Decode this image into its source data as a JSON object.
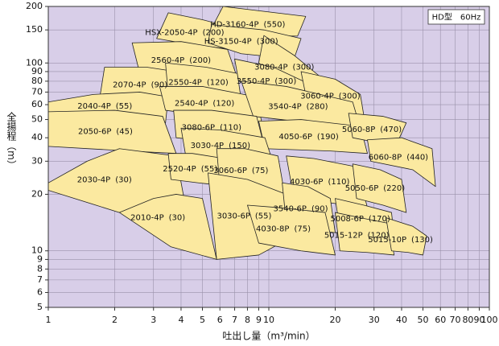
{
  "chart_data": {
    "type": "region",
    "badge": "HD型　60Hz",
    "x_label": "吐出し量（m³/min）",
    "y_label": "全揚程（m）",
    "xscale": "log",
    "yscale": "log",
    "grid": true,
    "background": "#d8cee8",
    "color": "#fbe9a0",
    "xlim": [
      1,
      100
    ],
    "ylim": [
      5,
      200
    ],
    "xticks": [
      1,
      2,
      3,
      4,
      5,
      6,
      7,
      8,
      9,
      10,
      20,
      30,
      40,
      50,
      60,
      70,
      80,
      90,
      100
    ],
    "yticks": [
      5,
      6,
      7,
      8,
      9,
      10,
      20,
      30,
      40,
      50,
      60,
      70,
      80,
      90,
      100,
      150,
      200
    ],
    "regions": [
      {
        "name": "HSX-2050-4P",
        "kw": "(200)",
        "x": [
          3.5,
          5.0,
          7.5,
          7.0,
          4.5,
          3.1
        ],
        "y": [
          185,
          170,
          150,
          118,
          125,
          135
        ]
      },
      {
        "name": "HD-3160-4P",
        "kw": "(550)",
        "x": [
          6.2,
          14.7,
          13.5,
          9.5,
          5.5
        ],
        "y": [
          200,
          177,
          139,
          140,
          153
        ]
      },
      {
        "name": "HS-3150-4P",
        "kw": "(300)",
        "x": [
          5.5,
          9.5,
          14.0,
          13.0,
          7.5,
          5.3
        ],
        "y": [
          160,
          150,
          135,
          105,
          112,
          128
        ]
      },
      {
        "name": "2560-4P",
        "kw": "(200)",
        "x": [
          2.4,
          4.0,
          6.5,
          7.2,
          4.8,
          2.6
        ],
        "y": [
          128,
          130,
          118,
          83,
          85,
          88
        ]
      },
      {
        "name": "3080-4P",
        "kw": "(300)",
        "x": [
          9.5,
          13,
          17,
          16,
          12,
          9
        ],
        "y": [
          140,
          110,
          85,
          70,
          80,
          100
        ]
      },
      {
        "name": "2070-4P",
        "kw": "(90)",
        "x": [
          1.8,
          2.8,
          4.3,
          4.6,
          3.0,
          1.7
        ],
        "y": [
          95,
          95,
          88,
          65,
          62,
          62
        ]
      },
      {
        "name": "2550-4P",
        "kw": "(120)",
        "x": [
          3.4,
          5.2,
          7.2,
          7.5,
          5.0,
          3.5
        ],
        "y": [
          100,
          95,
          88,
          63,
          66,
          68
        ]
      },
      {
        "name": "3550-4P",
        "kw": "(300)",
        "x": [
          7,
          10.5,
          15,
          14,
          10.5,
          7.3
        ],
        "y": [
          105,
          95,
          78,
          60,
          70,
          80
        ]
      },
      {
        "name": "3060-4P",
        "kw": "(300)",
        "x": [
          14,
          20,
          26,
          27,
          22,
          15
        ],
        "y": [
          90,
          82,
          68,
          52,
          55,
          60
        ]
      },
      {
        "name": "2040-4P",
        "kw": "(55)",
        "x": [
          1,
          1.6,
          2.6,
          3.5,
          3.4,
          2.2,
          1
        ],
        "y": [
          62,
          68,
          70,
          66,
          48,
          50,
          53
        ]
      },
      {
        "name": "2540-4P",
        "kw": "(120)",
        "x": [
          3.2,
          5.0,
          8.8,
          9.3,
          5.5,
          3.4
        ],
        "y": [
          75,
          75,
          66,
          48,
          52,
          56
        ]
      },
      {
        "name": "3540-4P",
        "kw": "(280)",
        "x": [
          7.5,
          12,
          24,
          26,
          18,
          8.5
        ],
        "y": [
          80,
          75,
          62,
          45,
          47,
          52
        ]
      },
      {
        "name": "3080-6P",
        "kw": "(110)",
        "x": [
          3.7,
          5.5,
          8.8,
          9.6,
          5.8,
          3.8
        ],
        "y": [
          56,
          56,
          52,
          35,
          38,
          40
        ]
      },
      {
        "name": "2050-6P",
        "kw": "(45)",
        "x": [
          1,
          2.0,
          3.3,
          3.8,
          2.3,
          1
        ],
        "y": [
          55,
          56,
          52,
          33,
          34,
          36
        ]
      },
      {
        "name": "4050-6P",
        "kw": "(190)",
        "x": [
          9,
          14,
          26,
          28,
          19,
          9.6
        ],
        "y": [
          49,
          50,
          46,
          33,
          34,
          35
        ]
      },
      {
        "name": "5060-8P",
        "kw": "(470)",
        "x": [
          23,
          33,
          42,
          38,
          30,
          24
        ],
        "y": [
          54,
          52,
          48,
          37,
          38,
          40
        ]
      },
      {
        "name": "3030-4P",
        "kw": "(150)",
        "x": [
          4.0,
          6.0,
          9.6,
          10.5,
          6.5,
          4.2
        ],
        "y": [
          45,
          44,
          40,
          29,
          31,
          32
        ]
      },
      {
        "name": "6060-8P",
        "kw": "(440)",
        "x": [
          28,
          40,
          55,
          57,
          45,
          29
        ],
        "y": [
          39,
          40,
          35,
          22,
          27,
          30
        ]
      },
      {
        "name": "2030-4P",
        "kw": "(30)",
        "x": [
          1,
          1.5,
          2.1,
          3.8,
          4.2,
          2.1,
          1
        ],
        "y": [
          23,
          30,
          35,
          32,
          17,
          16,
          21
        ]
      },
      {
        "name": "2520-4P",
        "kw": "(55)",
        "x": [
          3.5,
          4.5,
          6.3,
          6.8,
          4.8,
          3.6
        ],
        "y": [
          33,
          33,
          31,
          22,
          23,
          24
        ]
      },
      {
        "name": "3060-6P",
        "kw": "(75)",
        "x": [
          5.8,
          7.8,
          11,
          11.8,
          8.0,
          6.0
        ],
        "y": [
          35,
          35,
          32,
          20,
          21,
          22
        ]
      },
      {
        "name": "4030-6P",
        "kw": "(110)",
        "x": [
          12,
          16,
          25,
          28,
          19,
          13
        ],
        "y": [
          32,
          31,
          28,
          17,
          18,
          19
        ]
      },
      {
        "name": "5050-6P",
        "kw": "(220)",
        "x": [
          24,
          32,
          40,
          42,
          33,
          25
        ],
        "y": [
          29,
          27,
          24,
          16,
          17.5,
          19
        ]
      },
      {
        "name": "2010-4P",
        "kw": "(30)",
        "x": [
          2.1,
          3.0,
          3.8,
          5.0,
          5.8,
          3.6,
          2.1
        ],
        "y": [
          16,
          19,
          20,
          19,
          9,
          10.5,
          16
        ]
      },
      {
        "name": "3030-6P",
        "kw": "(55)",
        "x": [
          5.3,
          8,
          12,
          13,
          9,
          5.8
        ],
        "y": [
          26,
          24,
          20,
          12,
          9.5,
          9
        ]
      },
      {
        "name": "3540-6P",
        "kw": "(90)",
        "x": [
          11.5,
          15,
          19,
          20,
          15,
          12
        ],
        "y": [
          23,
          22,
          19,
          12.5,
          13,
          14
        ]
      },
      {
        "name": "5008-6P",
        "kw": "(170)",
        "x": [
          20,
          27,
          36,
          37,
          28,
          21
        ],
        "y": [
          19,
          17.5,
          16,
          12,
          12.5,
          13
        ]
      },
      {
        "name": "4030-8P",
        "kw": "(75)",
        "x": [
          8,
          11,
          18,
          20,
          14,
          9
        ],
        "y": [
          17.5,
          17,
          16,
          9.5,
          10,
          11
        ]
      },
      {
        "name": "5015-12P",
        "kw": "(120)",
        "x": [
          20,
          26,
          35,
          37,
          28,
          21
        ],
        "y": [
          16,
          15,
          14,
          9.5,
          9.8,
          10
        ]
      },
      {
        "name": "5015-10P",
        "kw": "(130)",
        "x": [
          34,
          45,
          52,
          50,
          43,
          36
        ],
        "y": [
          15,
          13.5,
          12,
          9.5,
          9.8,
          10
        ]
      }
    ]
  }
}
